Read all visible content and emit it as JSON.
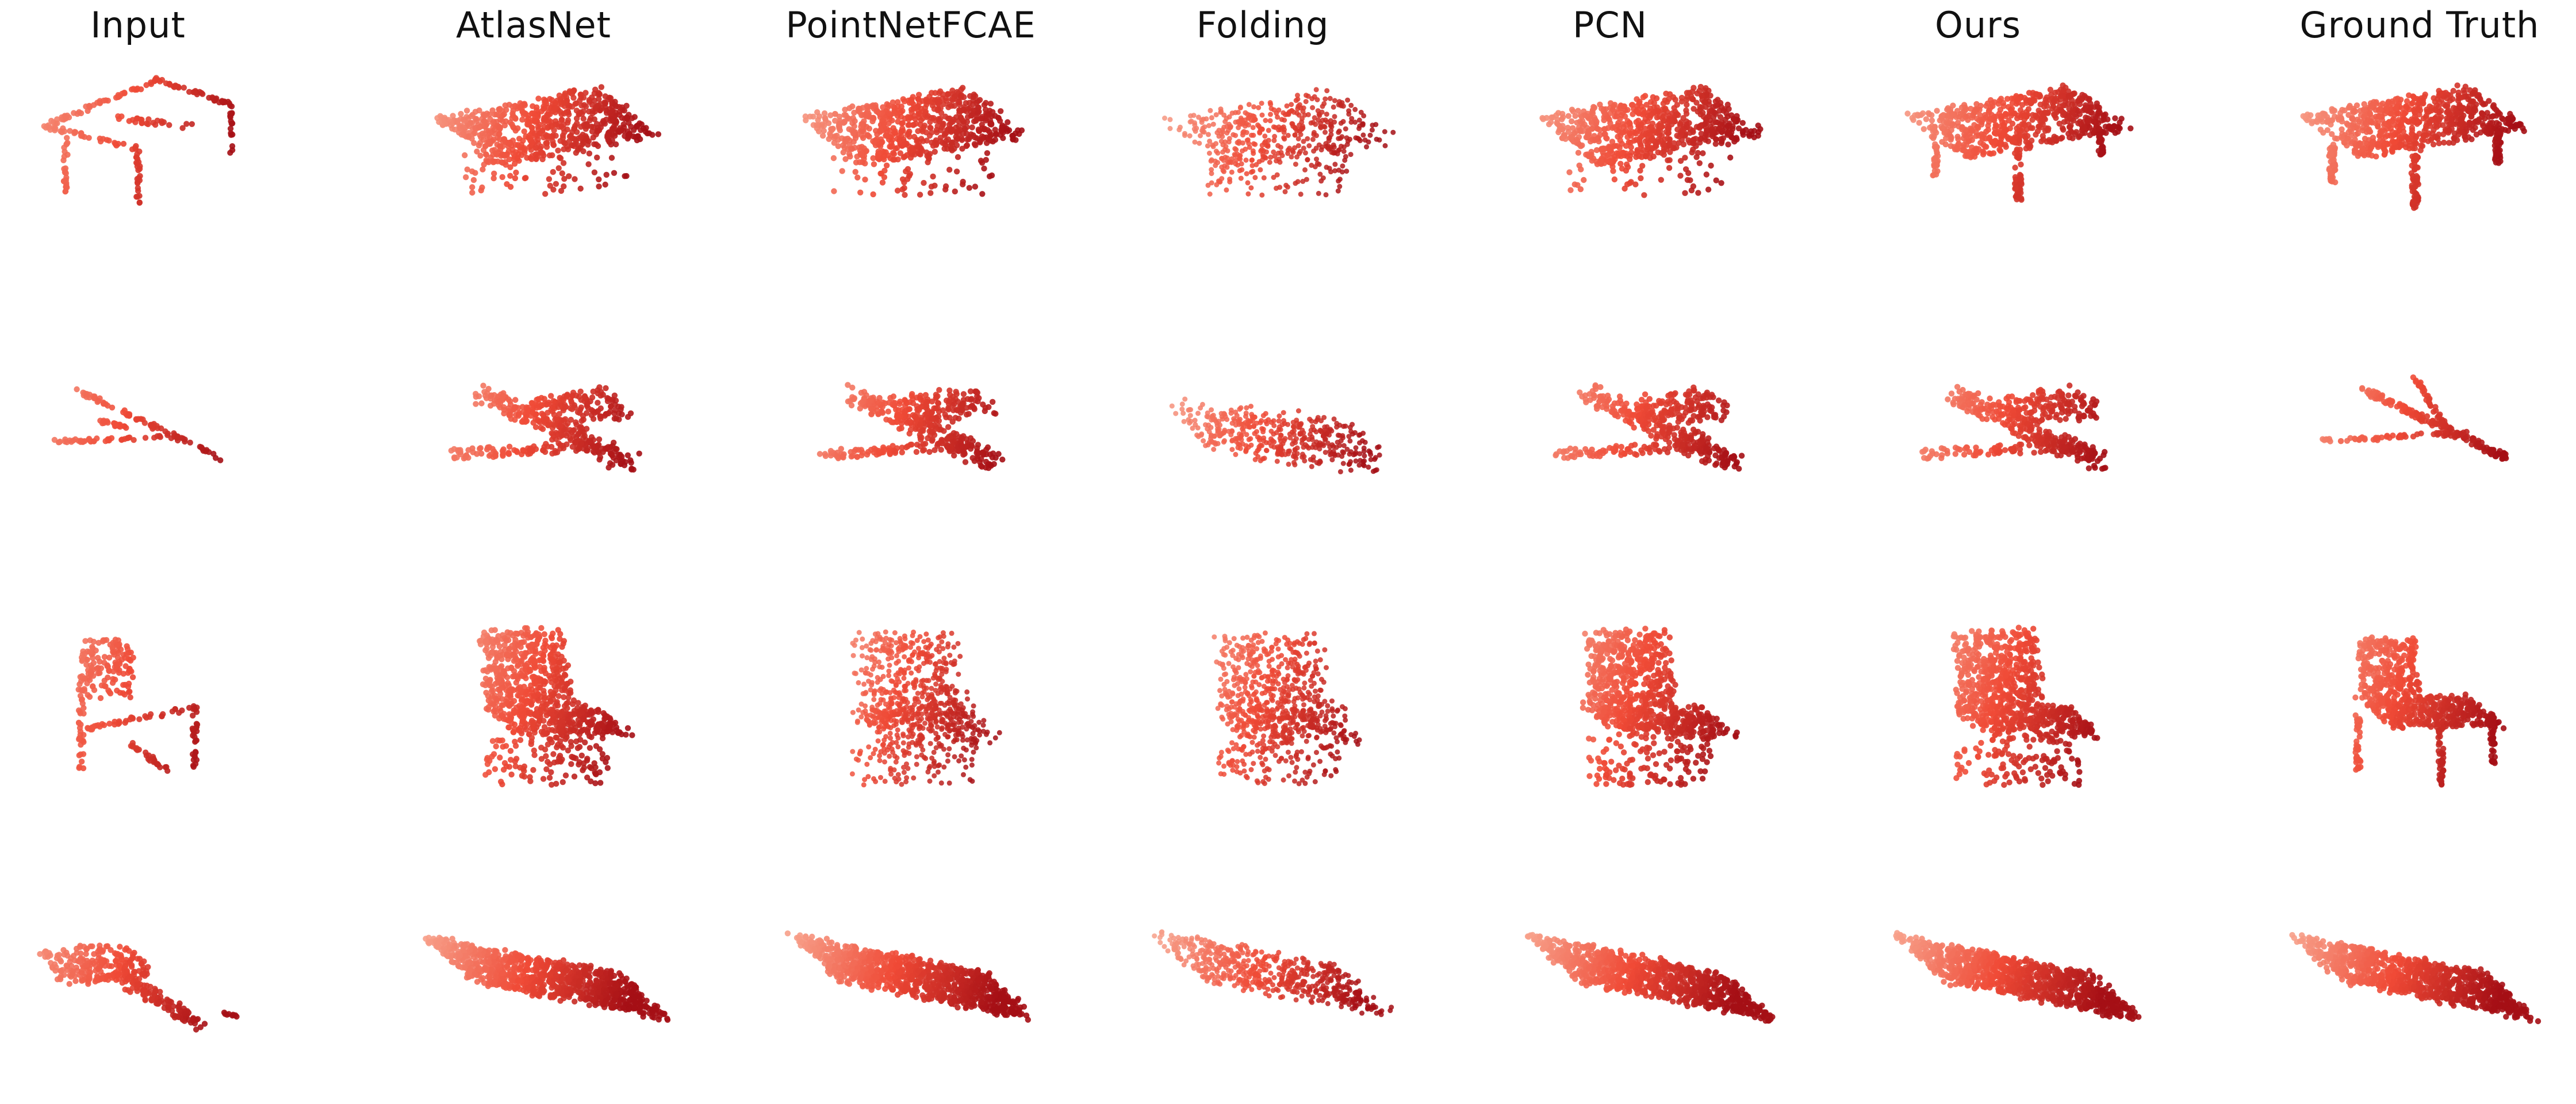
{
  "column_titles": [
    "Input",
    "AtlasNet",
    "PointNetFCAE",
    "Folding",
    "PCN",
    "Ours",
    "Ground Truth"
  ],
  "rows": [
    {
      "object": "table",
      "cells": [
        {
          "method": "Input",
          "shape": "table-partial"
        },
        {
          "method": "AtlasNet",
          "shape": "table-blob"
        },
        {
          "method": "PointNetFCAE",
          "shape": "table-blob"
        },
        {
          "method": "Folding",
          "shape": "table-sparse"
        },
        {
          "method": "PCN",
          "shape": "table-blob"
        },
        {
          "method": "Ours",
          "shape": "table-legs"
        },
        {
          "method": "Ground Truth",
          "shape": "table-full"
        }
      ]
    },
    {
      "object": "airplane",
      "cells": [
        {
          "method": "Input",
          "shape": "plane-thin"
        },
        {
          "method": "AtlasNet",
          "shape": "plane-blob"
        },
        {
          "method": "PointNetFCAE",
          "shape": "plane-blob"
        },
        {
          "method": "Folding",
          "shape": "plane-sparse"
        },
        {
          "method": "PCN",
          "shape": "plane-blob"
        },
        {
          "method": "Ours",
          "shape": "plane-blob"
        },
        {
          "method": "Ground Truth",
          "shape": "plane-full"
        }
      ]
    },
    {
      "object": "chair",
      "cells": [
        {
          "method": "Input",
          "shape": "chair-partial"
        },
        {
          "method": "AtlasNet",
          "shape": "chair-blob"
        },
        {
          "method": "PointNetFCAE",
          "shape": "chair-sparse"
        },
        {
          "method": "Folding",
          "shape": "chair-sparse"
        },
        {
          "method": "PCN",
          "shape": "chair-blob"
        },
        {
          "method": "Ours",
          "shape": "chair-blob"
        },
        {
          "method": "Ground Truth",
          "shape": "chair-full"
        }
      ]
    },
    {
      "object": "car",
      "cells": [
        {
          "method": "Input",
          "shape": "car-partial"
        },
        {
          "method": "AtlasNet",
          "shape": "car-full"
        },
        {
          "method": "PointNetFCAE",
          "shape": "car-full"
        },
        {
          "method": "Folding",
          "shape": "car-sparse"
        },
        {
          "method": "PCN",
          "shape": "car-full"
        },
        {
          "method": "Ours",
          "shape": "car-full"
        },
        {
          "method": "Ground Truth",
          "shape": "car-full"
        }
      ]
    }
  ],
  "colors": {
    "light": "#f7a08a",
    "mid": "#ef4a36",
    "dark": "#a50f15",
    "title_text": "#111111"
  }
}
